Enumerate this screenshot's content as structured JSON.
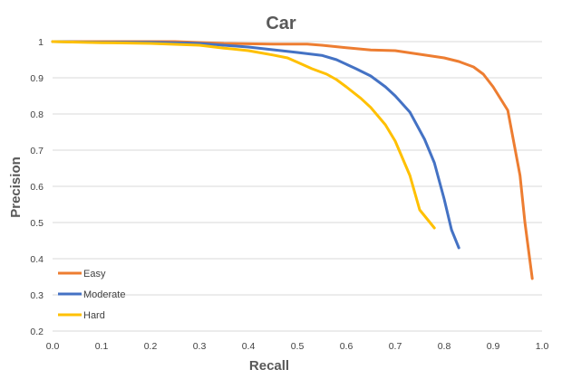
{
  "chart_data": {
    "type": "line",
    "title": "Car",
    "xlabel": "Recall",
    "ylabel": "Precision",
    "xlim": [
      0,
      1
    ],
    "ylim": [
      0.2,
      1
    ],
    "xticks": [
      "0.0",
      "0.1",
      "0.2",
      "0.3",
      "0.4",
      "0.5",
      "0.6",
      "0.7",
      "0.8",
      "0.9",
      "1.0"
    ],
    "yticks": [
      "0.2",
      "0.3",
      "0.4",
      "0.5",
      "0.6",
      "0.7",
      "0.8",
      "0.9",
      "1"
    ],
    "grid": "horizontal",
    "legend_position": "bottom-left",
    "series": [
      {
        "name": "Easy",
        "color": "#ED7D31",
        "x": [
          0.0,
          0.1,
          0.25,
          0.35,
          0.45,
          0.52,
          0.55,
          0.6,
          0.65,
          0.7,
          0.75,
          0.8,
          0.83,
          0.86,
          0.88,
          0.9,
          0.93,
          0.955,
          0.965,
          0.98
        ],
        "y": [
          1.0,
          1.0,
          1.0,
          0.995,
          0.993,
          0.993,
          0.99,
          0.983,
          0.977,
          0.975,
          0.965,
          0.955,
          0.945,
          0.93,
          0.91,
          0.875,
          0.81,
          0.63,
          0.5,
          0.345
        ]
      },
      {
        "name": "Moderate",
        "color": "#4472C4",
        "x": [
          0.0,
          0.1,
          0.2,
          0.3,
          0.4,
          0.5,
          0.55,
          0.58,
          0.62,
          0.65,
          0.68,
          0.7,
          0.73,
          0.76,
          0.78,
          0.8,
          0.815,
          0.83
        ],
        "y": [
          1.0,
          0.998,
          0.998,
          0.995,
          0.985,
          0.97,
          0.962,
          0.95,
          0.925,
          0.905,
          0.875,
          0.85,
          0.805,
          0.73,
          0.665,
          0.565,
          0.48,
          0.43
        ]
      },
      {
        "name": "Hard",
        "color": "#FFC000",
        "x": [
          0.0,
          0.1,
          0.2,
          0.3,
          0.35,
          0.4,
          0.45,
          0.48,
          0.5,
          0.53,
          0.56,
          0.58,
          0.6,
          0.63,
          0.65,
          0.68,
          0.7,
          0.73,
          0.75,
          0.78
        ],
        "y": [
          1.0,
          0.997,
          0.995,
          0.99,
          0.982,
          0.975,
          0.963,
          0.955,
          0.943,
          0.925,
          0.91,
          0.895,
          0.875,
          0.843,
          0.818,
          0.77,
          0.725,
          0.63,
          0.535,
          0.485
        ]
      }
    ]
  }
}
